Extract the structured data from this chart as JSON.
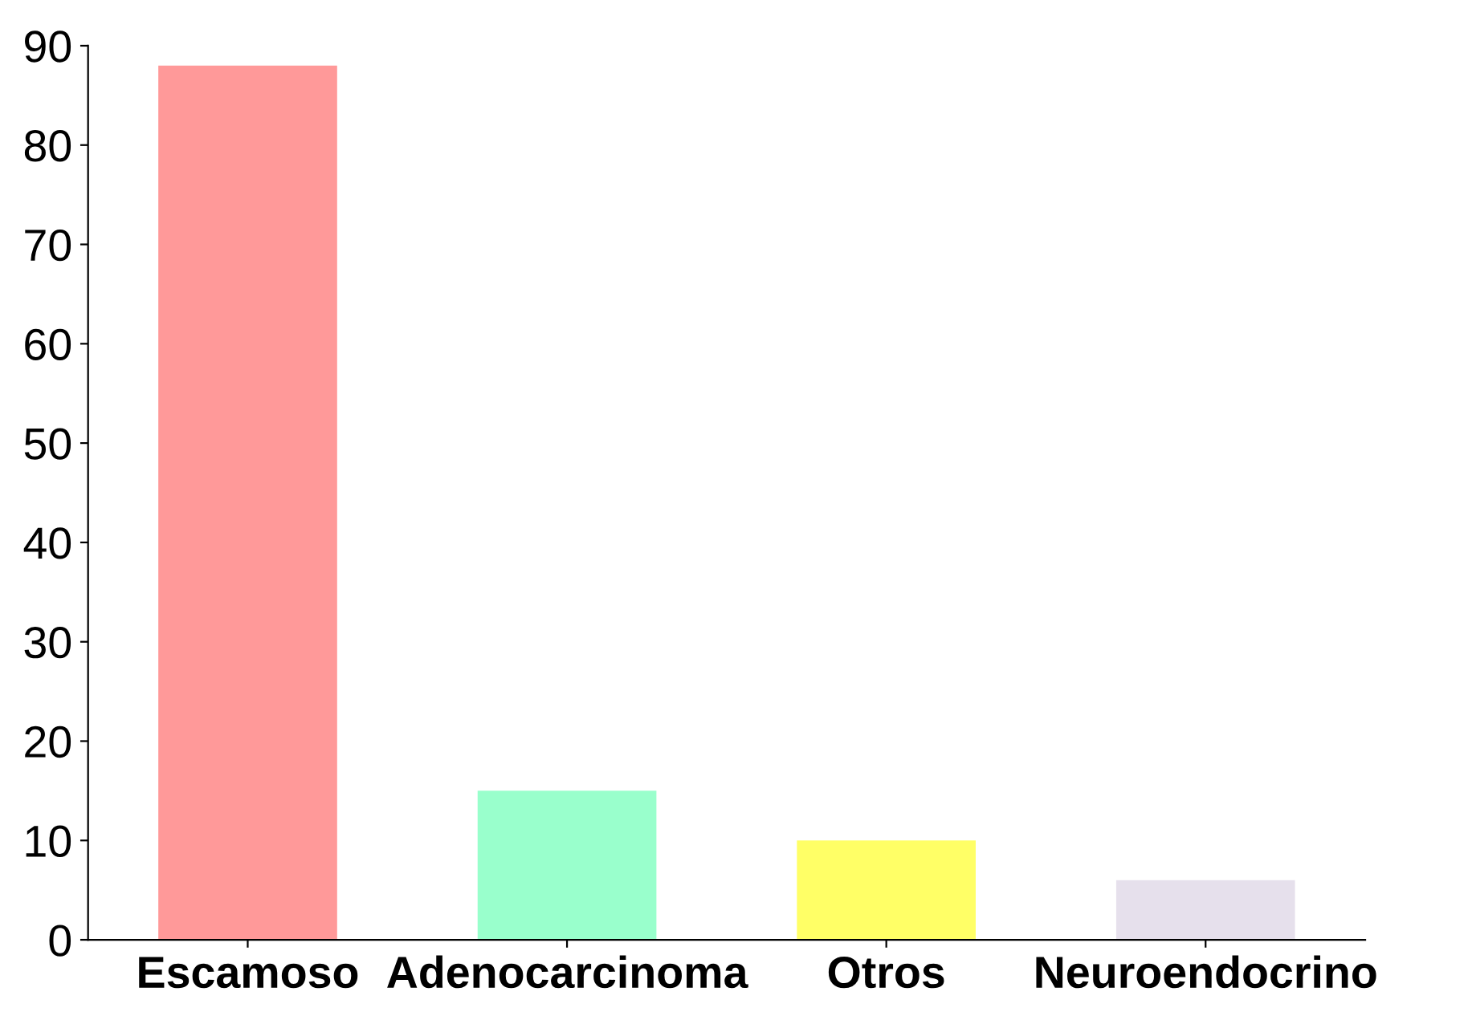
{
  "chart_data": {
    "type": "bar",
    "categories": [
      "Escamoso",
      "Adenocarcinoma",
      "Otros",
      "Neuroendocrino"
    ],
    "values": [
      88,
      15,
      10,
      6
    ],
    "colors": [
      "#ff9999",
      "#99ffcc",
      "#ffff66",
      "#e6e0ec"
    ],
    "ylim": [
      0,
      90
    ],
    "yticks": [
      0,
      10,
      20,
      30,
      40,
      50,
      60,
      70,
      80,
      90
    ],
    "grid": false,
    "legend": false
  }
}
